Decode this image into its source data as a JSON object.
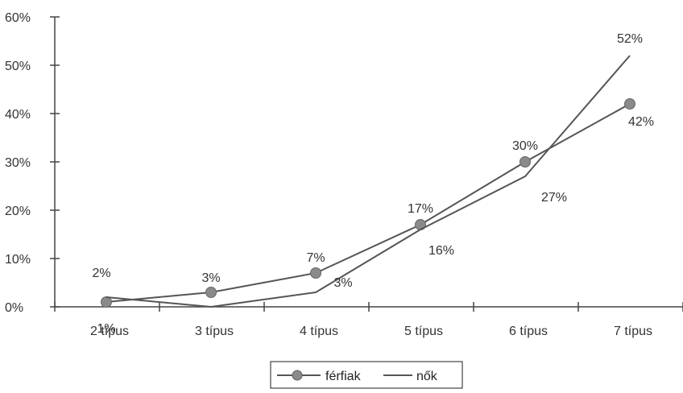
{
  "chart_data": {
    "type": "line",
    "categories": [
      "2 típus",
      "3 típus",
      "4 típus",
      "5 típus",
      "6 típus",
      "7 típus"
    ],
    "series": [
      {
        "name": "férfiak",
        "values": [
          1,
          3,
          7,
          17,
          30,
          42
        ],
        "labels": [
          "1%",
          "3%",
          "7%",
          "17%",
          "30%",
          "42%"
        ],
        "marker": "circle"
      },
      {
        "name": "nők",
        "values": [
          2,
          0,
          3,
          16,
          27,
          52
        ],
        "labels": [
          "2%",
          "",
          "3%",
          "16%",
          "27%",
          "52%"
        ],
        "marker": "none"
      }
    ],
    "y_ticks": [
      "0%",
      "10%",
      "20%",
      "30%",
      "40%",
      "50%",
      "60%"
    ],
    "ylim": [
      0,
      60
    ],
    "grid": false,
    "legend_position": "bottom-center",
    "colors": {
      "line": "#555555",
      "marker": "#8a8a8a",
      "axis": "#444444",
      "text": "#333333"
    }
  }
}
